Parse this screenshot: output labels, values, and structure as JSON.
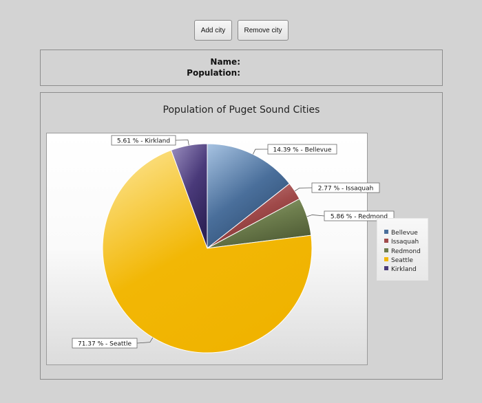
{
  "toolbar": {
    "add_label": "Add city",
    "remove_label": "Remove city"
  },
  "info": {
    "name_label": "Name:",
    "population_label": "Population:"
  },
  "chart_data": {
    "type": "pie",
    "title": "Population of Puget Sound Cities",
    "slices": [
      {
        "name": "Bellevue",
        "percent": 14.39,
        "label": "14.39 % - Bellevue",
        "color": "#4a6f9b",
        "light": "#a7c3e2",
        "dark": "#2e4d72"
      },
      {
        "name": "Issaquah",
        "percent": 2.77,
        "label": "2.77 % - Issaquah",
        "color": "#a04a4a",
        "light": "#cc8f8f",
        "dark": "#7a2f2f"
      },
      {
        "name": "Redmond",
        "percent": 5.86,
        "label": "5.86 % - Redmond",
        "color": "#6d7d4d",
        "light": "#9fae80",
        "dark": "#4f5c35"
      },
      {
        "name": "Seattle",
        "percent": 71.37,
        "label": "71.37 % - Seattle",
        "color": "#f2b705",
        "light": "#fde79a",
        "dark": "#f0b300"
      },
      {
        "name": "Kirkland",
        "percent": 5.61,
        "label": "5.61 % - Kirkland",
        "color": "#4a3a7a",
        "light": "#9b8fc0",
        "dark": "#2e2358"
      }
    ],
    "legend": [
      "Bellevue",
      "Issaquah",
      "Redmond",
      "Seattle",
      "Kirkland"
    ],
    "legend_position": "right"
  }
}
